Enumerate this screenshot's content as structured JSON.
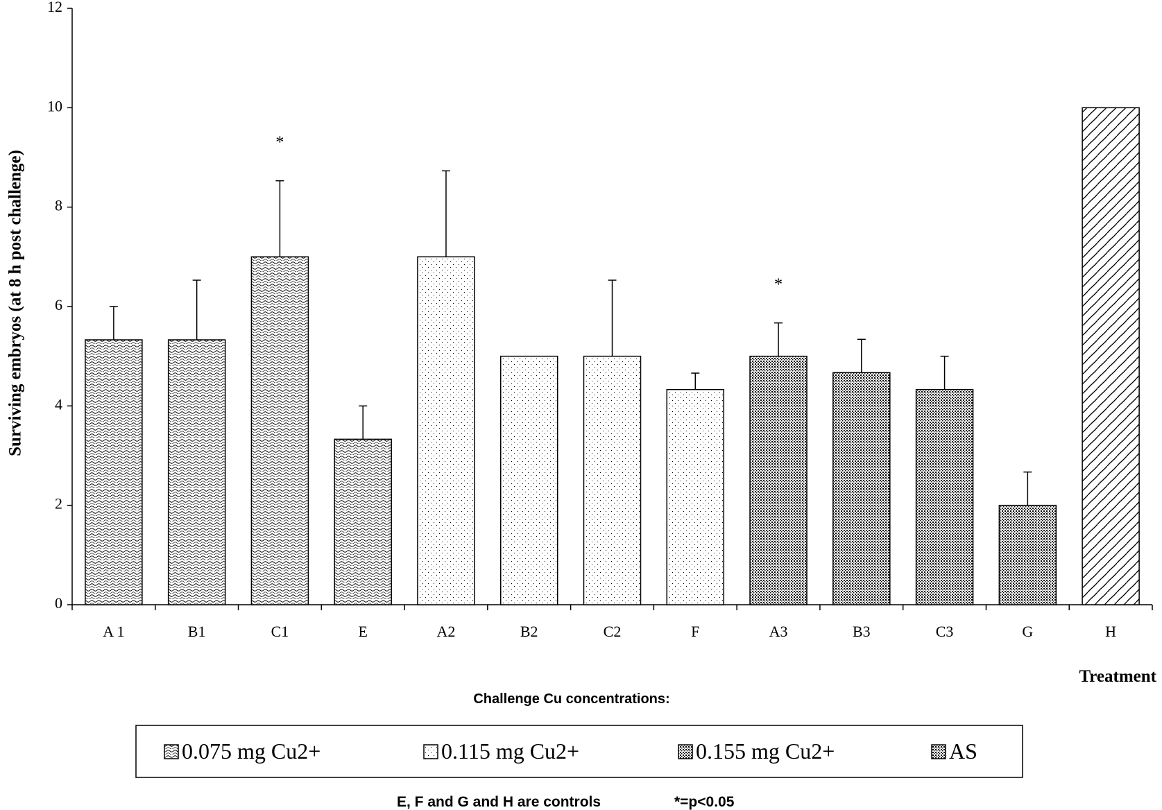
{
  "chart_data": {
    "type": "bar",
    "title": "",
    "xlabel": "Treatment",
    "ylabel": "Surviving embryos (at 8 h post challenge)",
    "ylim": [
      0,
      12
    ],
    "yticks": [
      0,
      2,
      4,
      6,
      8,
      10,
      12
    ],
    "grid": false,
    "categories": [
      "A 1",
      "B1",
      "C1",
      "E",
      "A2",
      "B2",
      "C2",
      "F",
      "A3",
      "B3",
      "C3",
      "G",
      "H"
    ],
    "values": [
      5.33,
      5.33,
      7.0,
      3.33,
      7.0,
      5.0,
      5.0,
      4.33,
      5.0,
      4.67,
      4.33,
      2.0,
      10.0
    ],
    "error_upper": [
      0.67,
      1.2,
      1.53,
      0.67,
      1.73,
      0,
      1.53,
      0.33,
      0.67,
      0.67,
      0.67,
      0.67,
      0
    ],
    "groups": [
      "g1",
      "g1",
      "g1",
      "g1",
      "g2",
      "g2",
      "g2",
      "g2",
      "g3",
      "g3",
      "g3",
      "g3",
      "h"
    ],
    "significance_label": "*",
    "significant": [
      "C1",
      "A3"
    ],
    "legend_title": "Challenge Cu concentrations:",
    "legend_position": "bottom",
    "legend": [
      {
        "label": "0.075 mg Cu2+",
        "group": "g1"
      },
      {
        "label": "0.115 mg Cu2+",
        "group": "g2"
      },
      {
        "label": "0.155 mg Cu2+",
        "group": "g3"
      },
      {
        "label": "AS",
        "group": "h"
      }
    ],
    "footnote_controls": "E, F and G and H are controls",
    "footnote_significance": "*=p<0.05"
  }
}
